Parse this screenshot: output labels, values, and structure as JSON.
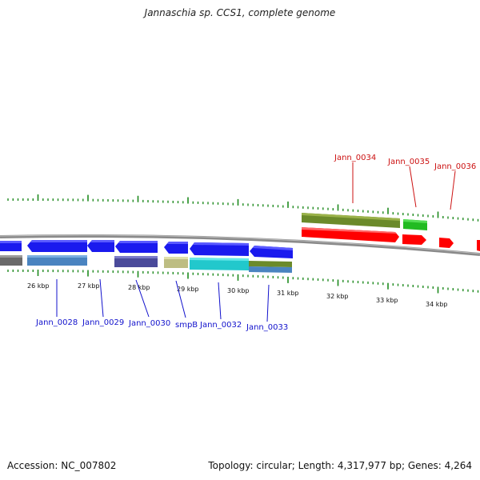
{
  "title": "Jannaschia sp. CCS1, complete genome",
  "accession_label": "Accession: NC_007802",
  "topology_label": "Topology: circular; Length: 4,317,977 bp; Genes: 4,264",
  "colors": {
    "backbone": "#8a8a8a",
    "tick": "#1e8a1e",
    "forward_label": "#cc1111",
    "reverse_label": "#1111cc"
  },
  "kbp_labels": [
    "26 kbp",
    "27 kbp",
    "28 kbp",
    "29 kbp",
    "30 kbp",
    "31 kbp",
    "32 kbp",
    "33 kbp",
    "34 kbp"
  ],
  "forward_labels": [
    {
      "name": "Jann_0034",
      "color": "#cc1111"
    },
    {
      "name": "Jann_0035",
      "color": "#cc1111"
    },
    {
      "name": "Jann_0036",
      "color": "#cc1111"
    }
  ],
  "reverse_labels": [
    {
      "name": "Jann_0028",
      "color": "#1111cc"
    },
    {
      "name": "Jann_0029",
      "color": "#1111cc"
    },
    {
      "name": "Jann_0030",
      "color": "#1111cc"
    },
    {
      "name": "smpB",
      "color": "#1111cc"
    },
    {
      "name": "Jann_0032",
      "color": "#1111cc"
    },
    {
      "name": "Jann_0033",
      "color": "#1111cc"
    }
  ]
}
